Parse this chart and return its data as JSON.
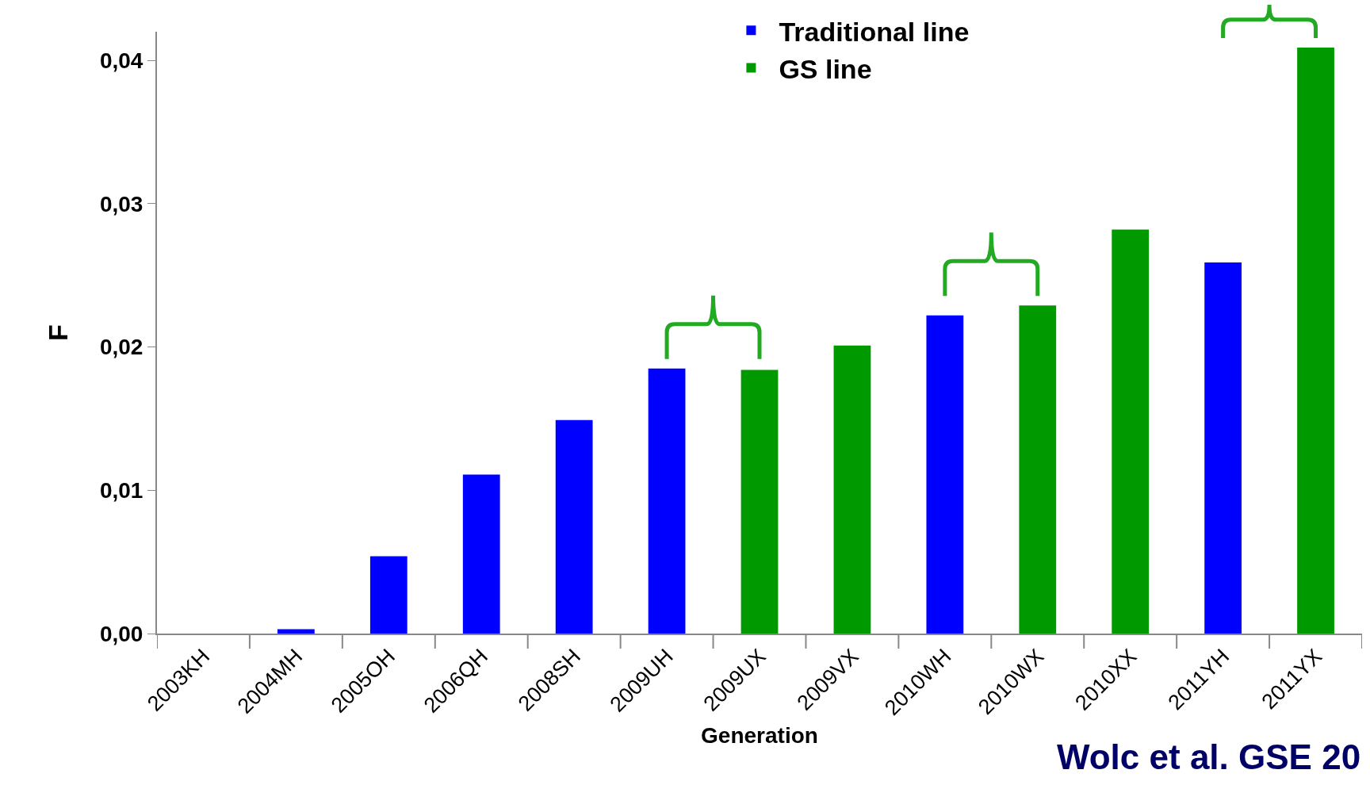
{
  "chart_data": {
    "type": "bar",
    "xlabel": "Generation",
    "ylabel": "F",
    "categories": [
      "2003KH",
      "2004MH",
      "2005OH",
      "2006QH",
      "2008SH",
      "2009UH",
      "2009UX",
      "2009VX",
      "2010WH",
      "2010WX",
      "2010XX",
      "2011YH",
      "2011YX"
    ],
    "series": [
      {
        "name": "Traditional line",
        "color": "#0000ff",
        "values": [
          0,
          0.0003,
          0.0054,
          0.0111,
          0.0149,
          0.0185,
          null,
          null,
          0.0222,
          null,
          null,
          0.0259,
          null
        ]
      },
      {
        "name": "GS line",
        "color": "#009900",
        "values": [
          null,
          null,
          null,
          null,
          null,
          null,
          0.0184,
          0.0201,
          null,
          0.0229,
          0.0282,
          null,
          0.0409
        ]
      }
    ],
    "ylim": [
      0,
      0.042
    ],
    "yticks": [
      {
        "value": 0,
        "label": "0,00"
      },
      {
        "value": 0.01,
        "label": "0,01"
      },
      {
        "value": 0.02,
        "label": "0,02"
      },
      {
        "value": 0.03,
        "label": "0,03"
      },
      {
        "value": 0.04,
        "label": "0,04"
      }
    ],
    "grid": false,
    "legend": "top right",
    "annotations": [
      "Wolc et al. GSE 20"
    ]
  }
}
